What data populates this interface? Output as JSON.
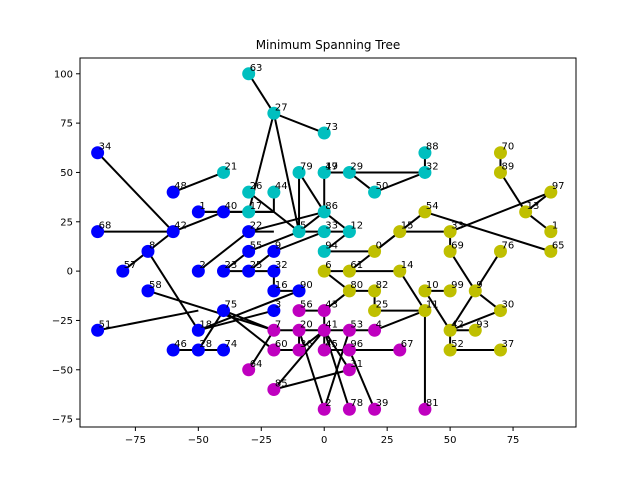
{
  "chart_data": {
    "type": "scatter",
    "title": "Minimum Spanning Tree",
    "xlim": [
      -97,
      100
    ],
    "ylim": [
      -79,
      108
    ],
    "x_ticks": [
      -75,
      -50,
      -25,
      0,
      25,
      50,
      75
    ],
    "y_ticks": [
      -75,
      -50,
      -25,
      0,
      25,
      50,
      75,
      100
    ],
    "x_tick_labels": [
      "−75",
      "−50",
      "−25",
      "0",
      "25",
      "50",
      "75"
    ],
    "y_tick_labels": [
      "−75",
      "−50",
      "−25",
      "0",
      "25",
      "50",
      "75",
      "100"
    ],
    "grid": false,
    "legend": "none",
    "edge_color": "#000000",
    "cluster_colors": {
      "b": "#0000ff",
      "c": "#00bfbf",
      "y": "#bfbf00",
      "m": "#bf00bf"
    },
    "nodes": [
      {
        "id": "34",
        "x": -90,
        "y": 60,
        "c": "b"
      },
      {
        "id": "68",
        "x": -90,
        "y": 20,
        "c": "b"
      },
      {
        "id": "51",
        "x": -90,
        "y": -30,
        "c": "b"
      },
      {
        "id": "57",
        "x": -80,
        "y": 0,
        "c": "b"
      },
      {
        "id": "8",
        "x": -70,
        "y": 10,
        "c": "b"
      },
      {
        "id": "58",
        "x": -70,
        "y": -10,
        "c": "b"
      },
      {
        "id": "48",
        "x": -60,
        "y": 40,
        "c": "b"
      },
      {
        "id": "42",
        "x": -60,
        "y": 20,
        "c": "b"
      },
      {
        "id": "46",
        "x": -60,
        "y": -40,
        "c": "b"
      },
      {
        "id": "1",
        "x": -50,
        "y": 30,
        "c": "b"
      },
      {
        "id": "2",
        "x": -50,
        "y": 0,
        "c": "b"
      },
      {
        "id": "18",
        "x": -50,
        "y": -30,
        "c": "b"
      },
      {
        "id": "28",
        "x": -50,
        "y": -40,
        "c": "b"
      },
      {
        "id": "40",
        "x": -40,
        "y": 30,
        "c": "b"
      },
      {
        "id": "23",
        "x": -40,
        "y": 0,
        "c": "b"
      },
      {
        "id": "75",
        "x": -40,
        "y": -20,
        "c": "b"
      },
      {
        "id": "74",
        "x": -40,
        "y": -40,
        "c": "b"
      },
      {
        "id": "22",
        "x": -30,
        "y": 20,
        "c": "b"
      },
      {
        "id": "55",
        "x": -30,
        "y": 10,
        "c": "b"
      },
      {
        "id": "25",
        "x": -30,
        "y": 0,
        "c": "b"
      },
      {
        "id": "9",
        "x": -20,
        "y": 10,
        "c": "b"
      },
      {
        "id": "32",
        "x": -20,
        "y": 0,
        "c": "b"
      },
      {
        "id": "16",
        "x": -20,
        "y": -10,
        "c": "b"
      },
      {
        "id": "3",
        "x": -20,
        "y": -20,
        "c": "b"
      },
      {
        "id": "90",
        "x": -10,
        "y": -10,
        "c": "b"
      },
      {
        "id": "63",
        "x": -30,
        "y": 100,
        "c": "c"
      },
      {
        "id": "27",
        "x": -20,
        "y": 80,
        "c": "c"
      },
      {
        "id": "73",
        "x": 0,
        "y": 70,
        "c": "c"
      },
      {
        "id": "21",
        "x": -40,
        "y": 50,
        "c": "c"
      },
      {
        "id": "79",
        "x": -10,
        "y": 50,
        "c": "c"
      },
      {
        "id": "19",
        "x": 0,
        "y": 50,
        "c": "c"
      },
      {
        "id": "47",
        "x": 0,
        "y": 50,
        "c": "c"
      },
      {
        "id": "29",
        "x": 10,
        "y": 50,
        "c": "c"
      },
      {
        "id": "88",
        "x": 40,
        "y": 60,
        "c": "c"
      },
      {
        "id": "32",
        "x": 40,
        "y": 50,
        "c": "c"
      },
      {
        "id": "26",
        "x": -30,
        "y": 40,
        "c": "c"
      },
      {
        "id": "44",
        "x": -20,
        "y": 40,
        "c": "c"
      },
      {
        "id": "50",
        "x": 20,
        "y": 40,
        "c": "c"
      },
      {
        "id": "17",
        "x": -30,
        "y": 30,
        "c": "c"
      },
      {
        "id": "86",
        "x": 0,
        "y": 30,
        "c": "c"
      },
      {
        "id": "5",
        "x": -10,
        "y": 20,
        "c": "c"
      },
      {
        "id": "33",
        "x": 0,
        "y": 20,
        "c": "c"
      },
      {
        "id": "12",
        "x": 10,
        "y": 20,
        "c": "c"
      },
      {
        "id": "94",
        "x": 0,
        "y": 10,
        "c": "c"
      },
      {
        "id": "70",
        "x": 70,
        "y": 60,
        "c": "y"
      },
      {
        "id": "89",
        "x": 70,
        "y": 50,
        "c": "y"
      },
      {
        "id": "97",
        "x": 90,
        "y": 40,
        "c": "y"
      },
      {
        "id": "54",
        "x": 40,
        "y": 30,
        "c": "y"
      },
      {
        "id": "13",
        "x": 80,
        "y": 30,
        "c": "y"
      },
      {
        "id": "33",
        "x": 50,
        "y": 20,
        "c": "y"
      },
      {
        "id": "15",
        "x": 30,
        "y": 20,
        "c": "y"
      },
      {
        "id": "1",
        "x": 90,
        "y": 20,
        "c": "y"
      },
      {
        "id": "69",
        "x": 50,
        "y": 10,
        "c": "y"
      },
      {
        "id": "76",
        "x": 70,
        "y": 10,
        "c": "y"
      },
      {
        "id": "65",
        "x": 90,
        "y": 10,
        "c": "y"
      },
      {
        "id": "0",
        "x": 20,
        "y": 10,
        "c": "y"
      },
      {
        "id": "6",
        "x": 0,
        "y": 0,
        "c": "y"
      },
      {
        "id": "61",
        "x": 10,
        "y": 0,
        "c": "y"
      },
      {
        "id": "14",
        "x": 30,
        "y": 0,
        "c": "y"
      },
      {
        "id": "80",
        "x": 10,
        "y": -10,
        "c": "y"
      },
      {
        "id": "82",
        "x": 20,
        "y": -10,
        "c": "y"
      },
      {
        "id": "10",
        "x": 40,
        "y": -10,
        "c": "y"
      },
      {
        "id": "99",
        "x": 50,
        "y": -10,
        "c": "y"
      },
      {
        "id": "9",
        "x": 60,
        "y": -10,
        "c": "y"
      },
      {
        "id": "25",
        "x": 20,
        "y": -20,
        "c": "y"
      },
      {
        "id": "11",
        "x": 40,
        "y": -20,
        "c": "y"
      },
      {
        "id": "30",
        "x": 70,
        "y": -20,
        "c": "y"
      },
      {
        "id": "42",
        "x": 50,
        "y": -30,
        "c": "y"
      },
      {
        "id": "93",
        "x": 60,
        "y": -30,
        "c": "y"
      },
      {
        "id": "52",
        "x": 50,
        "y": -40,
        "c": "y"
      },
      {
        "id": "37",
        "x": 70,
        "y": -40,
        "c": "y"
      },
      {
        "id": "7",
        "x": -20,
        "y": -30,
        "c": "m"
      },
      {
        "id": "56",
        "x": -10,
        "y": -20,
        "c": "m"
      },
      {
        "id": "43",
        "x": 0,
        "y": -20,
        "c": "m"
      },
      {
        "id": "20",
        "x": -10,
        "y": -30,
        "c": "m"
      },
      {
        "id": "41",
        "x": 0,
        "y": -30,
        "c": "m"
      },
      {
        "id": "53",
        "x": 10,
        "y": -30,
        "c": "m"
      },
      {
        "id": "4",
        "x": 20,
        "y": -30,
        "c": "m"
      },
      {
        "id": "60",
        "x": -20,
        "y": -40,
        "c": "m"
      },
      {
        "id": "36",
        "x": -10,
        "y": -40,
        "c": "m"
      },
      {
        "id": "45",
        "x": 0,
        "y": -40,
        "c": "m"
      },
      {
        "id": "96",
        "x": 10,
        "y": -40,
        "c": "m"
      },
      {
        "id": "67",
        "x": 30,
        "y": -40,
        "c": "m"
      },
      {
        "id": "64",
        "x": -30,
        "y": -50,
        "c": "m"
      },
      {
        "id": "31",
        "x": 10,
        "y": -50,
        "c": "m"
      },
      {
        "id": "85",
        "x": -20,
        "y": -60,
        "c": "m"
      },
      {
        "id": "2",
        "x": 0,
        "y": -70,
        "c": "m"
      },
      {
        "id": "78",
        "x": 10,
        "y": -70,
        "c": "m"
      },
      {
        "id": "39",
        "x": 20,
        "y": -70,
        "c": "m"
      },
      {
        "id": "81",
        "x": 40,
        "y": -70,
        "c": "m"
      }
    ],
    "edges": [
      [
        -90,
        60,
        -60,
        20
      ],
      [
        -90,
        20,
        -60,
        20
      ],
      [
        -80,
        0,
        -70,
        10
      ],
      [
        -70,
        10,
        -60,
        20
      ],
      [
        -60,
        20,
        -40,
        30
      ],
      [
        -60,
        40,
        -40,
        50
      ],
      [
        -50,
        30,
        -40,
        30
      ],
      [
        -50,
        30,
        -20,
        30
      ],
      [
        -40,
        30,
        -20,
        30
      ],
      [
        -70,
        10,
        -50,
        -30
      ],
      [
        -50,
        0,
        -30,
        20
      ],
      [
        -40,
        0,
        -20,
        0
      ],
      [
        -40,
        0,
        -30,
        10
      ],
      [
        -30,
        20,
        -20,
        20
      ],
      [
        -30,
        10,
        -10,
        20
      ],
      [
        -30,
        0,
        -20,
        10
      ],
      [
        -50,
        -30,
        -20,
        -20
      ],
      [
        -50,
        -30,
        -10,
        -10
      ],
      [
        -60,
        -40,
        -40,
        -40
      ],
      [
        -50,
        -40,
        -40,
        -20
      ],
      [
        -40,
        -20,
        -20,
        -30
      ],
      [
        -40,
        -20,
        -20,
        -40
      ],
      [
        -20,
        0,
        -20,
        -10
      ],
      [
        -20,
        -10,
        -10,
        -10
      ],
      [
        -70,
        -10,
        -20,
        -30
      ],
      [
        -90,
        -30,
        -50,
        -20
      ],
      [
        -30,
        100,
        -20,
        80
      ],
      [
        -20,
        80,
        0,
        70
      ],
      [
        -20,
        80,
        -30,
        30
      ],
      [
        -20,
        80,
        -10,
        20
      ],
      [
        -10,
        50,
        0,
        30
      ],
      [
        -10,
        50,
        -10,
        20
      ],
      [
        0,
        50,
        20,
        50
      ],
      [
        0,
        50,
        0,
        30
      ],
      [
        10,
        50,
        20,
        40
      ],
      [
        20,
        40,
        40,
        50
      ],
      [
        40,
        50,
        40,
        60
      ],
      [
        0,
        50,
        40,
        50
      ],
      [
        -30,
        40,
        -10,
        20
      ],
      [
        -20,
        40,
        -20,
        30
      ],
      [
        0,
        30,
        10,
        20
      ],
      [
        0,
        30,
        -10,
        20
      ],
      [
        -10,
        20,
        0,
        20
      ],
      [
        0,
        20,
        10,
        20
      ],
      [
        0,
        10,
        10,
        20
      ],
      [
        0,
        10,
        20,
        10
      ],
      [
        -30,
        20,
        0,
        30
      ],
      [
        -20,
        10,
        0,
        20
      ],
      [
        70,
        60,
        70,
        50
      ],
      [
        70,
        50,
        80,
        30
      ],
      [
        90,
        40,
        80,
        30
      ],
      [
        90,
        40,
        50,
        20
      ],
      [
        80,
        30,
        90,
        20
      ],
      [
        40,
        30,
        90,
        10
      ],
      [
        40,
        30,
        20,
        10
      ],
      [
        30,
        20,
        50,
        20
      ],
      [
        50,
        20,
        50,
        10
      ],
      [
        50,
        10,
        60,
        -10
      ],
      [
        60,
        -10,
        70,
        -20
      ],
      [
        70,
        -20,
        50,
        -30
      ],
      [
        50,
        -30,
        60,
        -30
      ],
      [
        50,
        -30,
        50,
        -40
      ],
      [
        50,
        -40,
        70,
        -40
      ],
      [
        70,
        10,
        50,
        -30
      ],
      [
        50,
        -30,
        40,
        -10
      ],
      [
        40,
        -10,
        50,
        -10
      ],
      [
        40,
        -20,
        20,
        -20
      ],
      [
        20,
        -20,
        20,
        -10
      ],
      [
        20,
        -10,
        10,
        -10
      ],
      [
        10,
        -10,
        0,
        0
      ],
      [
        0,
        0,
        10,
        0
      ],
      [
        10,
        0,
        30,
        0
      ],
      [
        30,
        0,
        40,
        -20
      ],
      [
        10,
        0,
        20,
        10
      ],
      [
        20,
        10,
        30,
        20
      ],
      [
        40,
        -20,
        40,
        -70
      ],
      [
        20,
        -30,
        40,
        -20
      ],
      [
        10,
        -10,
        0,
        -20
      ],
      [
        -20,
        -30,
        0,
        -30
      ],
      [
        -10,
        -20,
        0,
        -20
      ],
      [
        0,
        -20,
        0,
        -30
      ],
      [
        0,
        -30,
        10,
        -30
      ],
      [
        10,
        -30,
        20,
        -30
      ],
      [
        -10,
        -30,
        -10,
        -40
      ],
      [
        0,
        -30,
        0,
        -40
      ],
      [
        0,
        -40,
        10,
        -40
      ],
      [
        10,
        -40,
        30,
        -40
      ],
      [
        -30,
        -50,
        -20,
        -30
      ],
      [
        -20,
        -60,
        0,
        -30
      ],
      [
        10,
        -50,
        0,
        -30
      ],
      [
        10,
        -50,
        -20,
        -60
      ],
      [
        0,
        -70,
        10,
        -30
      ],
      [
        10,
        -70,
        0,
        -30
      ],
      [
        20,
        -70,
        10,
        -40
      ],
      [
        -20,
        -40,
        -10,
        -40
      ],
      [
        -10,
        -40,
        0,
        -30
      ],
      [
        0,
        -70,
        -10,
        -30
      ]
    ]
  }
}
